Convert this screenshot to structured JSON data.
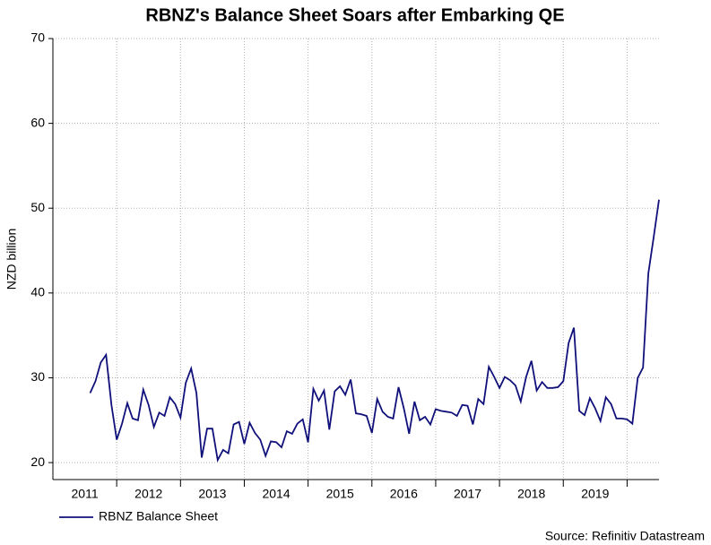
{
  "chart_data": {
    "type": "line",
    "title": "RBNZ's Balance Sheet Soars after Embarking QE",
    "ylabel": "NZD billion",
    "source": "Source: Refinitiv Datastream",
    "legend": "bottom-left",
    "grid": true,
    "ylim": [
      18,
      70
    ],
    "yticks": [
      20,
      30,
      40,
      50,
      60,
      70
    ],
    "xlim": [
      2011,
      2020.5
    ],
    "xticks": [
      {
        "value": 2011.5,
        "label": "2011"
      },
      {
        "value": 2012.5,
        "label": "2012"
      },
      {
        "value": 2013.5,
        "label": "2013"
      },
      {
        "value": 2014.5,
        "label": "2014"
      },
      {
        "value": 2015.5,
        "label": "2015"
      },
      {
        "value": 2016.5,
        "label": "2016"
      },
      {
        "value": 2017.5,
        "label": "2017"
      },
      {
        "value": 2018.5,
        "label": "2018"
      },
      {
        "value": 2019.5,
        "label": "2019"
      }
    ],
    "x": [
      2011.583,
      2011.667,
      2011.75,
      2011.833,
      2011.917,
      2012,
      2012.083,
      2012.167,
      2012.25,
      2012.333,
      2012.417,
      2012.5,
      2012.583,
      2012.667,
      2012.75,
      2012.833,
      2012.917,
      2013,
      2013.083,
      2013.167,
      2013.25,
      2013.333,
      2013.417,
      2013.5,
      2013.583,
      2013.667,
      2013.75,
      2013.833,
      2013.917,
      2014,
      2014.083,
      2014.167,
      2014.25,
      2014.333,
      2014.417,
      2014.5,
      2014.583,
      2014.667,
      2014.75,
      2014.833,
      2014.917,
      2015,
      2015.083,
      2015.167,
      2015.25,
      2015.333,
      2015.417,
      2015.5,
      2015.583,
      2015.667,
      2015.75,
      2015.833,
      2015.917,
      2016,
      2016.083,
      2016.167,
      2016.25,
      2016.333,
      2016.417,
      2016.5,
      2016.583,
      2016.667,
      2016.75,
      2016.833,
      2016.917,
      2017,
      2017.083,
      2017.167,
      2017.25,
      2017.333,
      2017.417,
      2017.5,
      2017.583,
      2017.667,
      2017.75,
      2017.833,
      2017.917,
      2018,
      2018.083,
      2018.167,
      2018.25,
      2018.333,
      2018.417,
      2018.5,
      2018.583,
      2018.667,
      2018.75,
      2018.833,
      2018.917,
      2019,
      2019.083,
      2019.167,
      2019.25,
      2019.333,
      2019.417,
      2019.5,
      2019.583,
      2019.667,
      2019.75,
      2019.833,
      2019.917,
      2020,
      2020.083,
      2020.167,
      2020.25,
      2020.333,
      2020.417,
      2020.5
    ],
    "series": [
      {
        "name": "RBNZ Balance Sheet",
        "color": "#10107a",
        "values": [
          28.2,
          29.6,
          31.8,
          32.7,
          26.8,
          22.7,
          24.6,
          27.0,
          25.2,
          25.0,
          28.6,
          26.8,
          24.2,
          25.9,
          25.5,
          27.7,
          26.9,
          25.3,
          29.4,
          31.1,
          28.2,
          20.6,
          24.0,
          24.0,
          20.3,
          21.5,
          21.1,
          24.5,
          24.8,
          22.2,
          24.7,
          23.5,
          22.7,
          20.8,
          22.5,
          22.4,
          21.8,
          23.7,
          23.4,
          24.6,
          25.1,
          22.4,
          28.7,
          27.3,
          28.5,
          23.9,
          28.4,
          29.0,
          28.0,
          29.8,
          25.8,
          25.7,
          25.5,
          23.5,
          27.5,
          26.0,
          25.4,
          25.2,
          28.9,
          26.4,
          23.4,
          27.2,
          25.0,
          25.4,
          24.5,
          26.3,
          26.1,
          26.0,
          25.9,
          25.5,
          26.8,
          26.7,
          24.5,
          27.5,
          26.9,
          31.3,
          30.1,
          28.8,
          30.1,
          29.7,
          29.1,
          27.2,
          30.1,
          32.0,
          28.5,
          29.5,
          28.8,
          28.8,
          28.9,
          29.6,
          34.1,
          35.9,
          26.1,
          25.6,
          27.6,
          26.4,
          24.9,
          27.7,
          26.9,
          25.2,
          25.2,
          25.1,
          24.6,
          30.0,
          31.2,
          42.3,
          46.6,
          51.0
        ]
      }
    ]
  }
}
